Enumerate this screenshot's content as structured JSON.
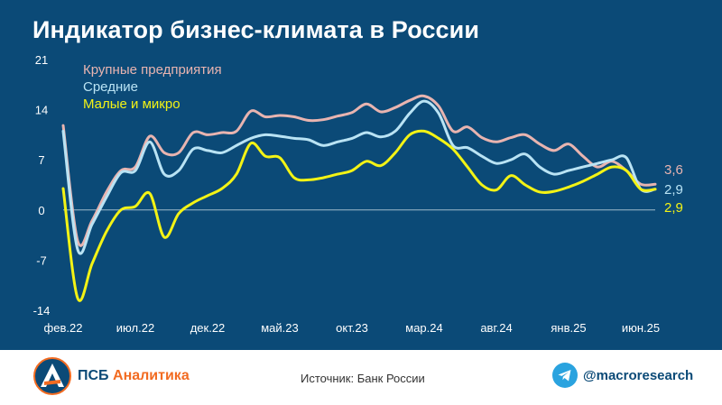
{
  "title": "Индикатор бизнес-климата в России",
  "colors": {
    "background": "#0b4a77",
    "large": "#e8b4b0",
    "medium": "#b9e3f4",
    "small": "#f3f315",
    "axis_text": "#ffffff",
    "zero_line": "#9fb9cc",
    "brand_orange": "#f26b21",
    "brand_blue": "#0b4a77",
    "telegram": "#2aa3df"
  },
  "chart_data": {
    "type": "line",
    "title": "Индикатор бизнес-климата в России",
    "xlabel": "",
    "ylabel": "",
    "ylim": [
      -14,
      21
    ],
    "yticks": [
      "21",
      "14",
      "7",
      "0",
      "-7",
      "-14"
    ],
    "xticks": [
      "фев.22",
      "июл.22",
      "дек.22",
      "май.23",
      "окт.23",
      "мар.24",
      "авг.24",
      "янв.25",
      "июн.25"
    ],
    "grid": false,
    "zero_line": true,
    "legend_position": "top-left",
    "x": [
      "2022-02",
      "2022-03",
      "2022-04",
      "2022-05",
      "2022-06",
      "2022-07",
      "2022-08",
      "2022-09",
      "2022-10",
      "2022-11",
      "2022-12",
      "2023-01",
      "2023-02",
      "2023-03",
      "2023-04",
      "2023-05",
      "2023-06",
      "2023-07",
      "2023-08",
      "2023-09",
      "2023-10",
      "2023-11",
      "2023-12",
      "2024-01",
      "2024-02",
      "2024-03",
      "2024-04",
      "2024-05",
      "2024-06",
      "2024-07",
      "2024-08",
      "2024-09",
      "2024-10",
      "2024-11",
      "2024-12",
      "2025-01",
      "2025-02",
      "2025-03",
      "2025-04",
      "2025-05",
      "2025-06",
      "2025-07"
    ],
    "series": [
      {
        "name": "Крупные предприятия",
        "color": "#e8b4b0",
        "last_label": "3,6",
        "values": [
          11.8,
          -4.3,
          -1.5,
          2.5,
          5.5,
          6.0,
          10.3,
          8.0,
          8.0,
          10.8,
          10.5,
          10.8,
          11.0,
          13.8,
          13.0,
          13.2,
          13.0,
          12.5,
          12.6,
          13.1,
          13.6,
          14.8,
          13.7,
          14.3,
          15.3,
          15.9,
          14.5,
          11.0,
          11.6,
          10.1,
          9.5,
          10.1,
          10.5,
          9.2,
          8.3,
          9.2,
          7.5,
          6.0,
          6.8,
          5.5,
          3.6,
          3.6
        ]
      },
      {
        "name": "Средние",
        "color": "#b9e3f4",
        "last_label": "2,9",
        "values": [
          11.0,
          -5.5,
          -2.0,
          1.8,
          5.2,
          5.5,
          9.5,
          5.0,
          5.5,
          8.5,
          8.3,
          8.0,
          9.0,
          10.0,
          10.5,
          10.3,
          10.0,
          9.8,
          9.0,
          9.5,
          10.0,
          10.8,
          10.2,
          11.0,
          13.5,
          15.2,
          13.5,
          9.0,
          8.7,
          7.5,
          6.5,
          7.0,
          7.8,
          6.0,
          5.0,
          5.5,
          6.0,
          6.5,
          7.0,
          7.3,
          2.9,
          2.9
        ]
      },
      {
        "name": "Малые и микро",
        "color": "#f3f315",
        "last_label": "2,9",
        "values": [
          3.0,
          -12.3,
          -7.5,
          -3.0,
          0.0,
          0.5,
          2.3,
          -3.8,
          -0.5,
          1.0,
          2.0,
          3.0,
          5.0,
          9.3,
          7.5,
          7.3,
          4.5,
          4.2,
          4.5,
          5.0,
          5.5,
          6.8,
          6.2,
          8.0,
          10.5,
          11.0,
          10.0,
          8.5,
          6.0,
          3.5,
          2.8,
          4.8,
          3.5,
          2.5,
          2.6,
          3.2,
          4.0,
          5.0,
          6.0,
          5.5,
          2.9,
          2.9
        ]
      }
    ]
  },
  "footer": {
    "brand_prefix": "ПСБ",
    "brand_accent": "Аналитика",
    "source": "Источник: Банк России",
    "telegram_handle": "@macroresearch"
  }
}
